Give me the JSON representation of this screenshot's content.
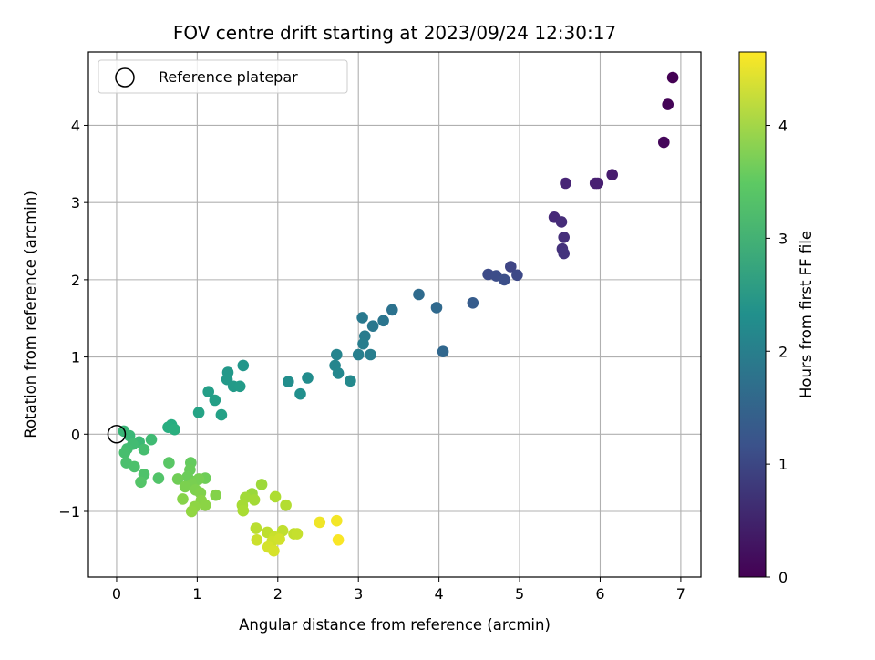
{
  "chart_data": {
    "type": "scatter",
    "title": "FOV centre drift starting at 2023/09/24 12:30:17",
    "xlabel": "Angular distance from reference (arcmin)",
    "ylabel": "Rotation from reference (arcmin)",
    "xlim": [
      -0.35,
      7.25
    ],
    "ylim": [
      -1.85,
      4.95
    ],
    "xticks": [
      "0",
      "1",
      "2",
      "3",
      "4",
      "5",
      "6",
      "7"
    ],
    "yticks": [
      "−1",
      "0",
      "1",
      "2",
      "3",
      "4"
    ],
    "grid": true,
    "legend": {
      "placement": "top-left",
      "entries": [
        "Reference platepar"
      ]
    },
    "reference_point": {
      "x": 0,
      "y": 0,
      "marker": "hollow-circle"
    },
    "colorbar": {
      "label": "Hours from first FF file",
      "range": [
        0,
        4.65
      ],
      "ticks": [
        "0",
        "1",
        "2",
        "3",
        "4"
      ],
      "colormap": "viridis"
    },
    "series": [
      {
        "points": [
          [
            6.9,
            4.62,
            0.0
          ],
          [
            6.84,
            4.27,
            0.05
          ],
          [
            6.79,
            3.78,
            0.1
          ],
          [
            6.15,
            3.36,
            0.45
          ],
          [
            5.97,
            3.25,
            0.5
          ],
          [
            5.94,
            3.25,
            0.52
          ],
          [
            5.57,
            3.25,
            0.6
          ],
          [
            5.43,
            2.81,
            0.65
          ],
          [
            5.52,
            2.75,
            0.68
          ],
          [
            5.55,
            2.55,
            0.72
          ],
          [
            5.53,
            2.4,
            0.75
          ],
          [
            5.55,
            2.34,
            0.78
          ],
          [
            4.89,
            2.17,
            1.0
          ],
          [
            4.97,
            2.06,
            1.05
          ],
          [
            4.61,
            2.07,
            1.08
          ],
          [
            4.71,
            2.05,
            1.1
          ],
          [
            4.81,
            2.0,
            1.12
          ],
          [
            4.42,
            1.7,
            1.35
          ],
          [
            4.05,
            1.07,
            1.55
          ],
          [
            3.97,
            1.64,
            1.58
          ],
          [
            3.75,
            1.81,
            1.62
          ],
          [
            3.42,
            1.61,
            1.75
          ],
          [
            3.31,
            1.47,
            1.8
          ],
          [
            3.18,
            1.4,
            1.85
          ],
          [
            3.05,
            1.51,
            1.88
          ],
          [
            3.08,
            1.27,
            1.92
          ],
          [
            3.06,
            1.17,
            1.95
          ],
          [
            3.15,
            1.03,
            1.98
          ],
          [
            3.0,
            1.03,
            2.0
          ],
          [
            2.73,
            1.03,
            2.1
          ],
          [
            2.71,
            0.89,
            2.12
          ],
          [
            2.75,
            0.79,
            2.15
          ],
          [
            2.9,
            0.69,
            2.18
          ],
          [
            2.37,
            0.73,
            2.25
          ],
          [
            2.13,
            0.68,
            2.28
          ],
          [
            2.28,
            0.52,
            2.3
          ],
          [
            1.57,
            0.89,
            2.45
          ],
          [
            1.38,
            0.8,
            2.48
          ],
          [
            1.37,
            0.71,
            2.5
          ],
          [
            1.45,
            0.62,
            2.52
          ],
          [
            1.53,
            0.62,
            2.55
          ],
          [
            1.14,
            0.55,
            2.6
          ],
          [
            1.22,
            0.44,
            2.63
          ],
          [
            1.3,
            0.25,
            2.66
          ],
          [
            1.02,
            0.28,
            2.7
          ],
          [
            0.68,
            0.12,
            2.9
          ],
          [
            0.64,
            0.09,
            2.92
          ],
          [
            0.72,
            0.06,
            2.95
          ],
          [
            0.09,
            0.04,
            3.1
          ],
          [
            0.16,
            -0.02,
            3.12
          ],
          [
            0.28,
            -0.1,
            3.15
          ],
          [
            0.43,
            -0.07,
            3.18
          ],
          [
            0.2,
            -0.13,
            3.2
          ],
          [
            0.13,
            -0.19,
            3.22
          ],
          [
            0.34,
            -0.2,
            3.25
          ],
          [
            0.1,
            -0.24,
            3.27
          ],
          [
            0.12,
            -0.37,
            3.3
          ],
          [
            0.22,
            -0.42,
            3.32
          ],
          [
            0.34,
            -0.52,
            3.35
          ],
          [
            0.52,
            -0.57,
            3.38
          ],
          [
            0.3,
            -0.62,
            3.4
          ],
          [
            0.65,
            -0.37,
            3.45
          ],
          [
            0.92,
            -0.37,
            3.55
          ],
          [
            0.91,
            -0.46,
            3.58
          ],
          [
            0.88,
            -0.55,
            3.6
          ],
          [
            1.1,
            -0.57,
            3.62
          ],
          [
            0.76,
            -0.58,
            3.64
          ],
          [
            0.97,
            -0.61,
            3.66
          ],
          [
            1.02,
            -0.58,
            3.68
          ],
          [
            0.93,
            -0.65,
            3.7
          ],
          [
            0.85,
            -0.68,
            3.72
          ],
          [
            0.98,
            -0.72,
            3.74
          ],
          [
            1.04,
            -0.76,
            3.76
          ],
          [
            1.23,
            -0.79,
            3.78
          ],
          [
            0.82,
            -0.84,
            3.8
          ],
          [
            1.05,
            -0.86,
            3.82
          ],
          [
            1.1,
            -0.92,
            3.84
          ],
          [
            0.97,
            -0.94,
            3.86
          ],
          [
            0.93,
            -1.0,
            3.88
          ],
          [
            1.68,
            -0.77,
            3.95
          ],
          [
            1.8,
            -0.65,
            3.97
          ],
          [
            1.6,
            -0.82,
            4.0
          ],
          [
            1.71,
            -0.85,
            4.02
          ],
          [
            1.56,
            -0.92,
            4.04
          ],
          [
            1.57,
            -0.99,
            4.06
          ],
          [
            1.97,
            -0.81,
            4.1
          ],
          [
            2.1,
            -0.92,
            4.13
          ],
          [
            1.73,
            -1.22,
            4.18
          ],
          [
            1.87,
            -1.27,
            4.2
          ],
          [
            2.06,
            -1.25,
            4.22
          ],
          [
            2.2,
            -1.29,
            4.24
          ],
          [
            2.24,
            -1.29,
            4.26
          ],
          [
            1.96,
            -1.33,
            4.28
          ],
          [
            1.74,
            -1.37,
            4.3
          ],
          [
            1.93,
            -1.39,
            4.32
          ],
          [
            2.02,
            -1.36,
            4.34
          ],
          [
            1.88,
            -1.46,
            4.36
          ],
          [
            1.95,
            -1.51,
            4.38
          ],
          [
            2.52,
            -1.14,
            4.55
          ],
          [
            2.73,
            -1.12,
            4.58
          ],
          [
            2.75,
            -1.37,
            4.62
          ]
        ]
      }
    ]
  }
}
